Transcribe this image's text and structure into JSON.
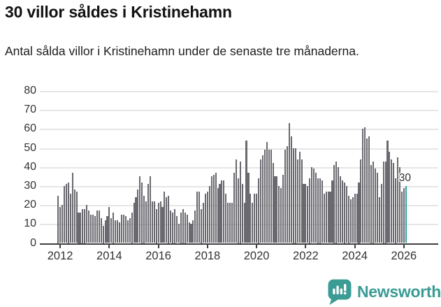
{
  "header": {
    "title": "30 villor såldes i Kristinehamn",
    "subtitle": "Antal sålda villor i Kristinehamn under de senaste tre månaderna."
  },
  "chart_data": {
    "type": "bar",
    "title": "30 villor såldes i Kristinehamn",
    "subtitle": "Antal sålda villor i Kristinehamn under de senaste tre månaderna.",
    "x_start_month": "2011-12",
    "x_end_month": "2026-02",
    "values": [
      25,
      19,
      20,
      30,
      31,
      32,
      26,
      37,
      28,
      27,
      16,
      16,
      18,
      18,
      20,
      17,
      15,
      15,
      14,
      17,
      17,
      13,
      9,
      12,
      14,
      19,
      13,
      16,
      12,
      12,
      11,
      15,
      15,
      14,
      12,
      13,
      16,
      21,
      24,
      28,
      35,
      32,
      25,
      22,
      31,
      35,
      22,
      22,
      18,
      21,
      22,
      19,
      27,
      24,
      25,
      17,
      16,
      18,
      14,
      10,
      16,
      18,
      16,
      15,
      11,
      10,
      12,
      17,
      27,
      27,
      18,
      21,
      26,
      27,
      30,
      35,
      36,
      37,
      29,
      31,
      33,
      33,
      26,
      21,
      21,
      21,
      37,
      44,
      34,
      43,
      31,
      21,
      54,
      37,
      26,
      21,
      26,
      26,
      34,
      44,
      46,
      49,
      53,
      49,
      49,
      42,
      35,
      35,
      30,
      29,
      36,
      49,
      51,
      63,
      56,
      50,
      50,
      44,
      48,
      44,
      31,
      31,
      30,
      34,
      40,
      39,
      37,
      34,
      34,
      33,
      26,
      27,
      27,
      27,
      33,
      41,
      43,
      40,
      35,
      33,
      32,
      30,
      25,
      23,
      24,
      26,
      26,
      32,
      44,
      60,
      61,
      55,
      56,
      41,
      43,
      39,
      37,
      24,
      31,
      43,
      43,
      54,
      48,
      44,
      42,
      34,
      45,
      40,
      27,
      29,
      30
    ],
    "x_tick_years": [
      2012,
      2014,
      2016,
      2018,
      2020,
      2022,
      2024,
      2026
    ],
    "y_ticks": [
      0,
      10,
      20,
      30,
      40,
      50,
      60,
      70,
      80
    ],
    "ylim": [
      0,
      80
    ],
    "grid": true,
    "legend": "none",
    "highlight": {
      "index": 170,
      "value": 30,
      "label": "30"
    },
    "colors": {
      "bar": "#69696f",
      "highlight": "#26a69f",
      "grid": "#e6e6e6",
      "axis": "#404040",
      "tick_text": "#333333"
    }
  },
  "footer": {
    "brand": "Newsworthy",
    "brand_color": "#3a9c95",
    "logo_icon": "newsworthy-speech-bubble-chart-icon"
  }
}
